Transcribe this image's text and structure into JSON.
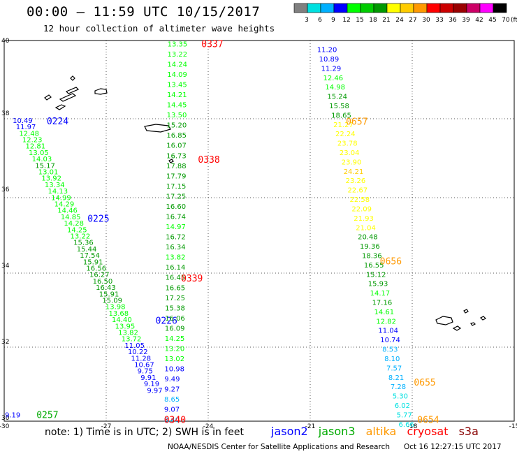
{
  "title": "00:00 – 11:59 UTC 10/15/2017",
  "subtitle": "12 hour collection of altimeter wave heights",
  "note": "note: 1) Time is in UTC; 2) SWH is in feet",
  "credit": {
    "org": "NOAA/NESDIS Center for Satellite Applications and Research",
    "time": "Oct 16 12:27:15 UTC 2017"
  },
  "color_scale": {
    "unit": "(ft)",
    "colors": [
      "#808080",
      "#00e0e0",
      "#00b0ff",
      "#0000ff",
      "#00ff00",
      "#00cc00",
      "#009900",
      "#ffff00",
      "#ffcc00",
      "#ff9900",
      "#ff0000",
      "#cc0000",
      "#990000",
      "#cc0066",
      "#ff00ff",
      "#000000"
    ],
    "labels": [
      "3",
      "6",
      "9",
      "12",
      "15",
      "18",
      "21",
      "24",
      "27",
      "30",
      "33",
      "36",
      "39",
      "42",
      "45",
      "70"
    ]
  },
  "map_extent": {
    "lon": [
      -30,
      -15
    ],
    "lat": [
      30,
      40
    ]
  },
  "x_ticks": [
    "-30",
    "-27",
    "-24",
    "-21",
    "-18",
    "-15"
  ],
  "y_ticks": [
    "40",
    "38",
    "36",
    "34",
    "32",
    "30"
  ],
  "satellites": [
    {
      "name": "jason2",
      "color": "#0000ff"
    },
    {
      "name": "jason3",
      "color": "#00aa00"
    },
    {
      "name": "altika",
      "color": "#ff9900"
    },
    {
      "name": "cryosat",
      "color": "#ff0000"
    },
    {
      "name": "s3a",
      "color": "#880000"
    }
  ],
  "tracks": [
    {
      "name": "jason2-pass-0224-0226",
      "start": [
        -29.75,
        37.91
      ],
      "end": [
        -25.8,
        30.82
      ],
      "points": [
        [
          "10.49",
          "#0000ff"
        ],
        [
          "11.97",
          "#0000ff"
        ],
        [
          "12.48",
          "#00ff00"
        ],
        [
          "12.23",
          "#00ff00"
        ],
        [
          "12.81",
          "#00ff00"
        ],
        [
          "13.05",
          "#00ff00"
        ],
        [
          "14.03",
          "#00ff00"
        ],
        [
          "15.17",
          "#009900"
        ],
        [
          "13.01",
          "#00ff00"
        ],
        [
          "13.92",
          "#00ff00"
        ],
        [
          "13.34",
          "#00ff00"
        ],
        [
          "14.13",
          "#00ff00"
        ],
        [
          "14.99",
          "#00ff00"
        ],
        [
          "14.29",
          "#00ff00"
        ],
        [
          "14.46",
          "#00ff00"
        ],
        [
          "14.85",
          "#00ff00"
        ],
        [
          "14.28",
          "#00ff00"
        ],
        [
          "14.25",
          "#00ff00"
        ],
        [
          "13.22",
          "#00ff00"
        ],
        [
          "15.36",
          "#009900"
        ],
        [
          "15.44",
          "#009900"
        ],
        [
          "17.54",
          "#009900"
        ],
        [
          "15.91",
          "#009900"
        ],
        [
          "16.56",
          "#009900"
        ],
        [
          "16.27",
          "#009900"
        ],
        [
          "16.50",
          "#009900"
        ],
        [
          "16.43",
          "#009900"
        ],
        [
          "15.91",
          "#009900"
        ],
        [
          "15.09",
          "#009900"
        ],
        [
          "13.98",
          "#00ff00"
        ],
        [
          "13.68",
          "#00ff00"
        ],
        [
          "14.40",
          "#00ff00"
        ],
        [
          "13.95",
          "#00ff00"
        ],
        [
          "13.82",
          "#00ff00"
        ],
        [
          "13.72",
          "#00ff00"
        ],
        [
          "11.05",
          "#0000ff"
        ],
        [
          "10.22",
          "#0000ff"
        ],
        [
          "11.28",
          "#0000ff"
        ],
        [
          "10.67",
          "#0000ff"
        ],
        [
          "9.75",
          "#0000ff"
        ],
        [
          "9.91",
          "#0000ff"
        ],
        [
          "9.19",
          "#0000ff"
        ],
        [
          "9.97",
          "#0000ff"
        ]
      ],
      "time_labels": [
        {
          "text": "0224",
          "color": "#0000ff",
          "at": [
            -28.75,
            37.89
          ]
        },
        {
          "text": "0225",
          "color": "#0000ff",
          "at": [
            -27.55,
            35.33
          ]
        },
        {
          "text": "0226",
          "color": "#0000ff",
          "at": [
            -25.55,
            32.65
          ]
        }
      ]
    },
    {
      "name": "jason3-pass-0257",
      "start": [
        -29.98,
        30.17
      ],
      "end": [
        -29.98,
        30.17
      ],
      "points": [
        [
          "9.19",
          "#0000ff"
        ]
      ],
      "time_labels": [
        {
          "text": "0257",
          "color": "#00aa00",
          "at": [
            -29.05,
            30.17
          ]
        }
      ]
    },
    {
      "name": "cryosat-pass-0337-0340",
      "start": [
        -25.2,
        39.92
      ],
      "end": [
        -25.3,
        30.05
      ],
      "points": [
        [
          "13.35",
          "#00ff00"
        ],
        [
          "13.22",
          "#00ff00"
        ],
        [
          "14.24",
          "#00ff00"
        ],
        [
          "14.09",
          "#00ff00"
        ],
        [
          "13.45",
          "#00ff00"
        ],
        [
          "14.21",
          "#00ff00"
        ],
        [
          "14.45",
          "#00ff00"
        ],
        [
          "13.50",
          "#00ff00"
        ],
        [
          "15.20",
          "#009900"
        ],
        [
          "16.85",
          "#009900"
        ],
        [
          "16.07",
          "#009900"
        ],
        [
          "16.73",
          "#009900"
        ],
        [
          "17.88",
          "#009900"
        ],
        [
          "17.79",
          "#009900"
        ],
        [
          "17.15",
          "#009900"
        ],
        [
          "17.25",
          "#009900"
        ],
        [
          "16.60",
          "#009900"
        ],
        [
          "16.74",
          "#009900"
        ],
        [
          "14.97",
          "#00ff00"
        ],
        [
          "16.72",
          "#009900"
        ],
        [
          "16.34",
          "#009900"
        ],
        [
          "13.82",
          "#00ff00"
        ],
        [
          "16.14",
          "#009900"
        ],
        [
          "16.45",
          "#009900"
        ],
        [
          "16.65",
          "#009900"
        ],
        [
          "17.25",
          "#009900"
        ],
        [
          "15.38",
          "#009900"
        ],
        [
          "16.06",
          "#009900"
        ],
        [
          "16.09",
          "#009900"
        ],
        [
          "14.25",
          "#00ff00"
        ],
        [
          "13.20",
          "#00ff00"
        ],
        [
          "13.02",
          "#00ff00"
        ],
        [
          "10.98",
          "#0000ff"
        ],
        [
          "9.49",
          "#0000ff"
        ],
        [
          "9.27",
          "#0000ff"
        ],
        [
          "8.65",
          "#00b0ff"
        ],
        [
          "9.07",
          "#0000ff"
        ],
        [
          "8.40",
          "#00b0ff"
        ]
      ],
      "time_labels": [
        {
          "text": "0337",
          "color": "#ff0000",
          "at": [
            -24.2,
            39.92
          ]
        },
        {
          "text": "0338",
          "color": "#ff0000",
          "at": [
            -24.3,
            36.88
          ]
        },
        {
          "text": "0339",
          "color": "#ff0000",
          "at": [
            -24.8,
            33.76
          ]
        },
        {
          "text": "0340",
          "color": "#ff0000",
          "at": [
            -25.3,
            30.05
          ]
        }
      ]
    },
    {
      "name": "altika-pass-0654-0657",
      "start": [
        -20.8,
        39.77
      ],
      "end": [
        -18.4,
        29.93
      ],
      "points": [
        [
          "11.20",
          "#0000ff"
        ],
        [
          "10.89",
          "#0000ff"
        ],
        [
          "11.29",
          "#0000ff"
        ],
        [
          "12.46",
          "#00ff00"
        ],
        [
          "14.98",
          "#00ff00"
        ],
        [
          "15.24",
          "#009900"
        ],
        [
          "15.58",
          "#009900"
        ],
        [
          "18.65",
          "#009900"
        ],
        [
          "21.27",
          "#ffff00"
        ],
        [
          "22.24",
          "#ffff00"
        ],
        [
          "23.78",
          "#ffff00"
        ],
        [
          "23.04",
          "#ffff00"
        ],
        [
          "23.90",
          "#ffff00"
        ],
        [
          "24.21",
          "#ffcc00"
        ],
        [
          "23.26",
          "#ffff00"
        ],
        [
          "22.67",
          "#ffff00"
        ],
        [
          "22.58",
          "#ffff00"
        ],
        [
          "22.09",
          "#ffff00"
        ],
        [
          "21.93",
          "#ffff00"
        ],
        [
          "21.04",
          "#ffff00"
        ],
        [
          "20.48",
          "#009900"
        ],
        [
          "19.36",
          "#009900"
        ],
        [
          "18.36",
          "#009900"
        ],
        [
          "16.55",
          "#009900"
        ],
        [
          "15.12",
          "#009900"
        ],
        [
          "15.93",
          "#009900"
        ],
        [
          "14.17",
          "#00ff00"
        ],
        [
          "17.16",
          "#009900"
        ],
        [
          "14.61",
          "#00ff00"
        ],
        [
          "12.82",
          "#00ff00"
        ],
        [
          "11.04",
          "#0000ff"
        ],
        [
          "10.74",
          "#0000ff"
        ],
        [
          "8.53",
          "#00b0ff"
        ],
        [
          "8.10",
          "#00b0ff"
        ],
        [
          "7.57",
          "#00b0ff"
        ],
        [
          "8.21",
          "#00b0ff"
        ],
        [
          "7.28",
          "#00b0ff"
        ],
        [
          "5.30",
          "#00e0e0"
        ],
        [
          "6.02",
          "#00e0e0"
        ],
        [
          "5.77",
          "#00e0e0"
        ],
        [
          "6.66",
          "#00e0e0"
        ]
      ],
      "time_labels": [
        {
          "text": "0657",
          "color": "#ff9900",
          "at": [
            -19.95,
            37.88
          ]
        },
        {
          "text": "0656",
          "color": "#ff9900",
          "at": [
            -18.95,
            34.21
          ]
        },
        {
          "text": "0655",
          "color": "#ff9900",
          "at": [
            -17.95,
            31.03
          ]
        },
        {
          "text": "0654",
          "color": "#ff9900",
          "at": [
            -17.85,
            30.05
          ]
        }
      ]
    }
  ]
}
